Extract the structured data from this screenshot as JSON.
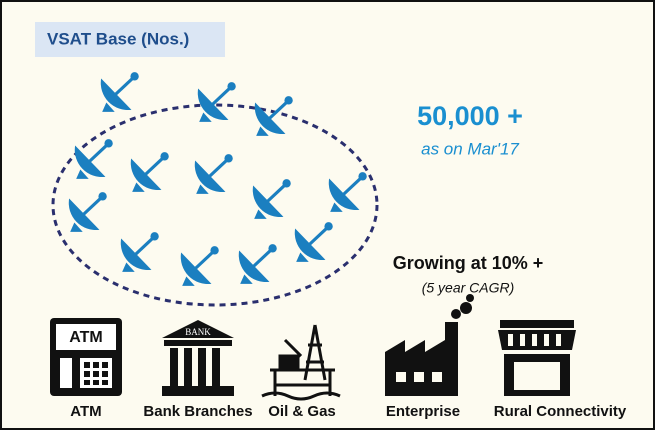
{
  "header": {
    "title": "VSAT Base (Nos.)"
  },
  "headline": {
    "value": "50,000 +",
    "note": "as on Mar'17"
  },
  "growth": {
    "text": "Growing at 10% +",
    "note": "(5 year CAGR)"
  },
  "icons": [
    {
      "label": "ATM",
      "badge": "ATM"
    },
    {
      "label": "Bank Branches",
      "badge": "BANK"
    },
    {
      "label": "Oil & Gas"
    },
    {
      "label": "Enterprise"
    },
    {
      "label": "Rural Connectivity"
    }
  ]
}
